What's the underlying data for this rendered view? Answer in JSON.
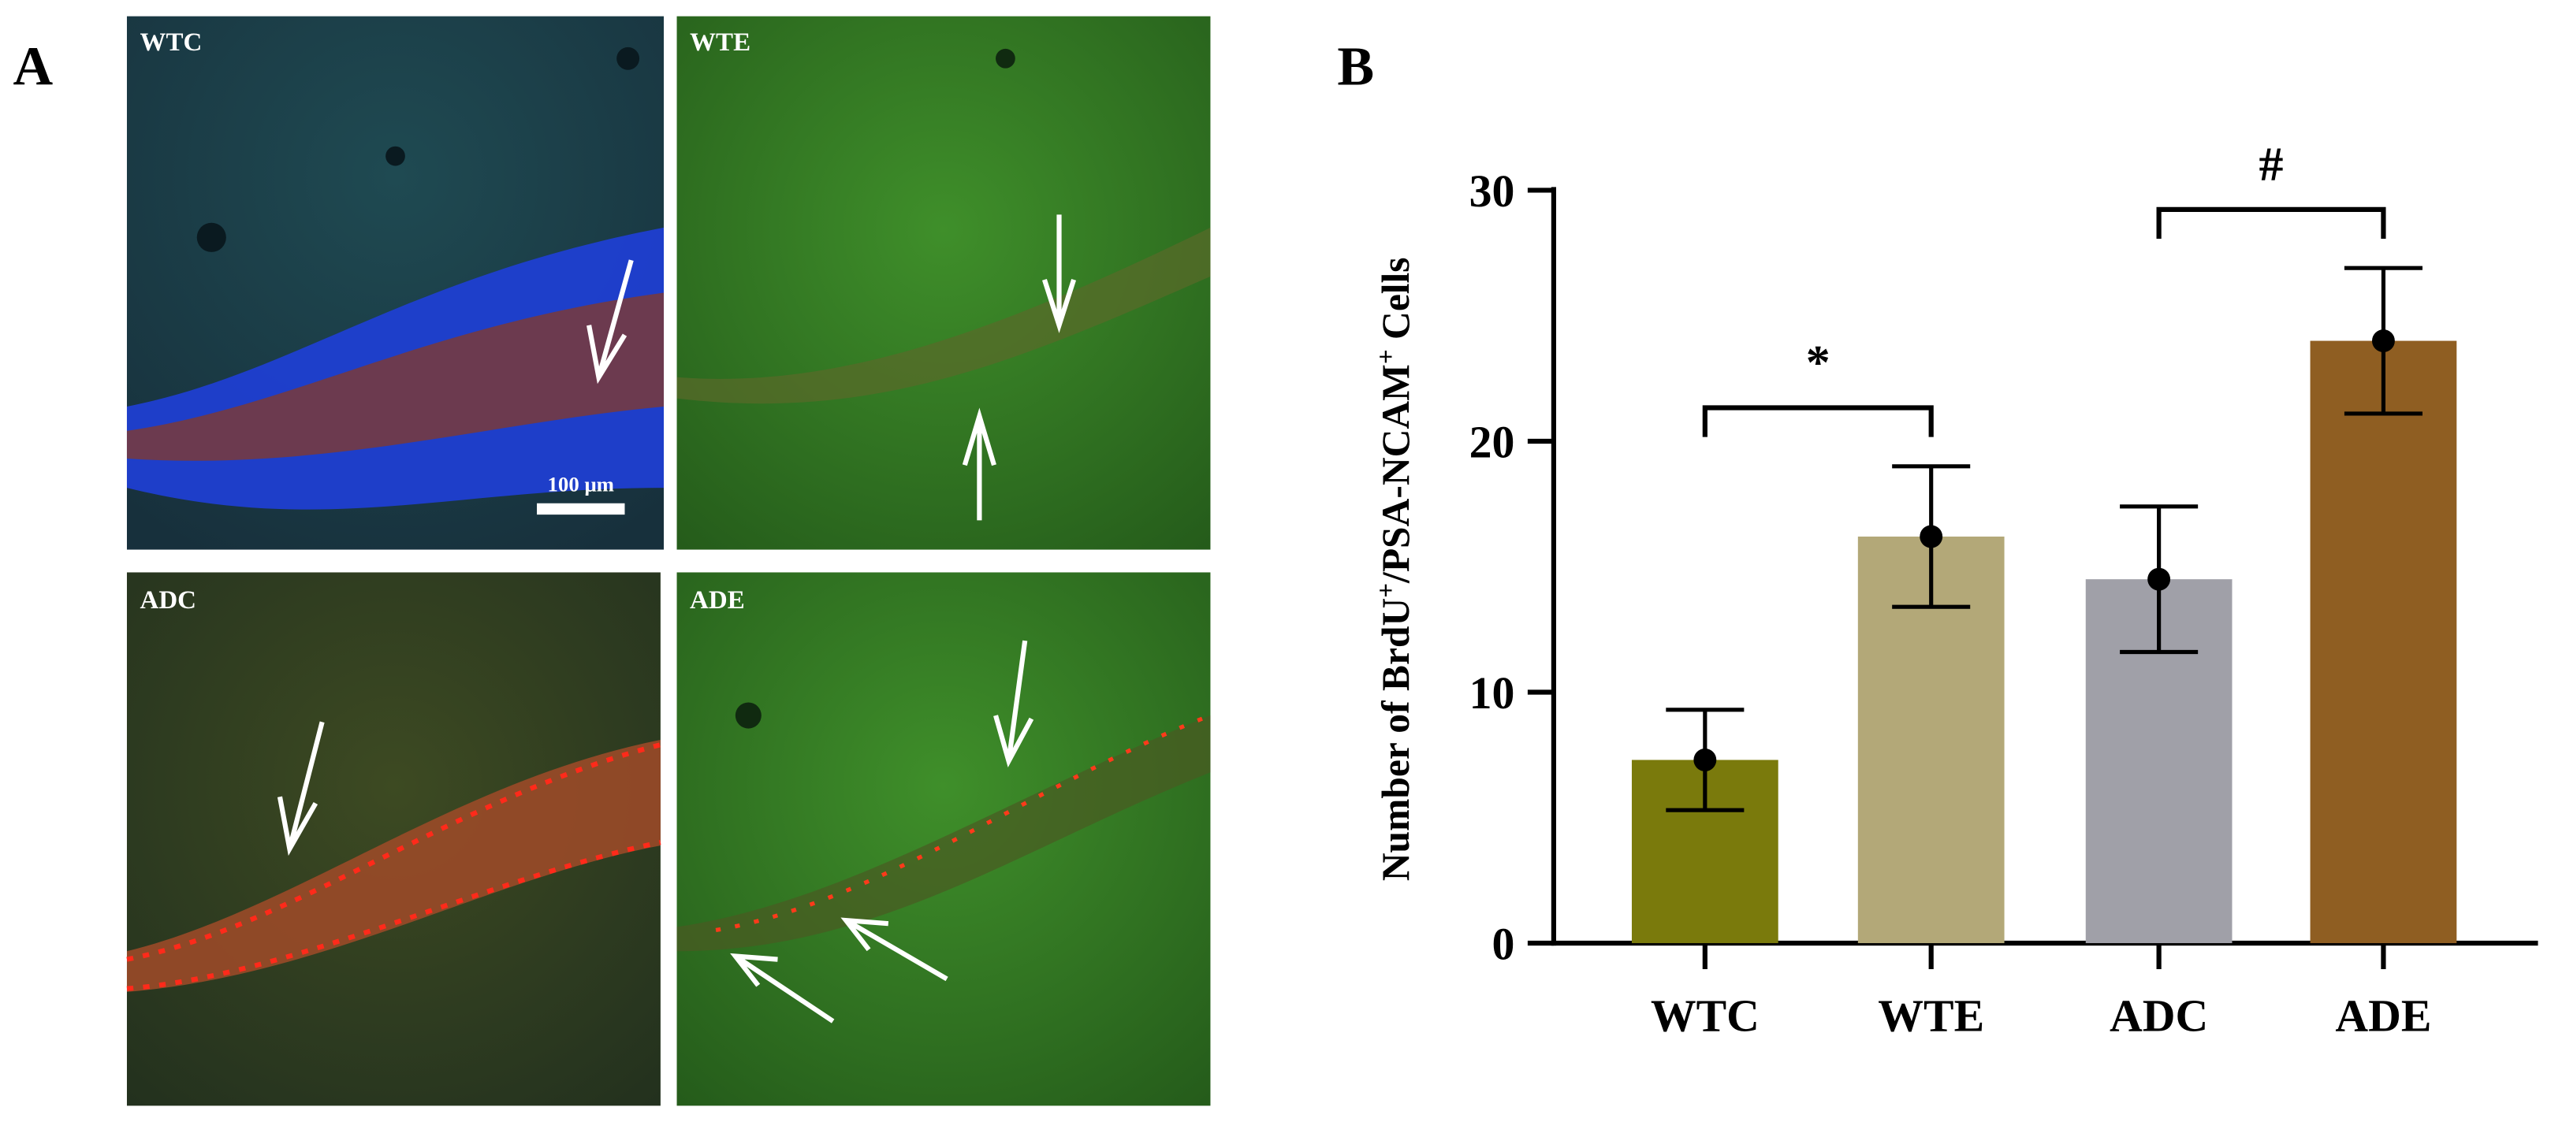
{
  "panel_labels": [
    "A",
    "B"
  ],
  "panel_a": {
    "images": [
      "WTC",
      "WTE",
      "ADC",
      "ADE"
    ],
    "scale_bar": "100 μm"
  },
  "chart_data": {
    "type": "bar",
    "categories": [
      "WTC",
      "WTE",
      "ADC",
      "ADE"
    ],
    "values": [
      7.3,
      16.2,
      14.5,
      24.0
    ],
    "errors": [
      2.0,
      2.8,
      2.9,
      2.9
    ],
    "colors": [
      "#7a7a0c",
      "#b3a878",
      "#a0a0a8",
      "#8f5e22"
    ],
    "ylim": [
      0,
      30
    ],
    "yticks": [
      0,
      10,
      20,
      30
    ],
    "y_label_parts": [
      "Number of BrdU",
      "+",
      "/PSA-NCAM",
      "+",
      " Cells"
    ],
    "annotations": [
      "*",
      "#"
    ]
  }
}
